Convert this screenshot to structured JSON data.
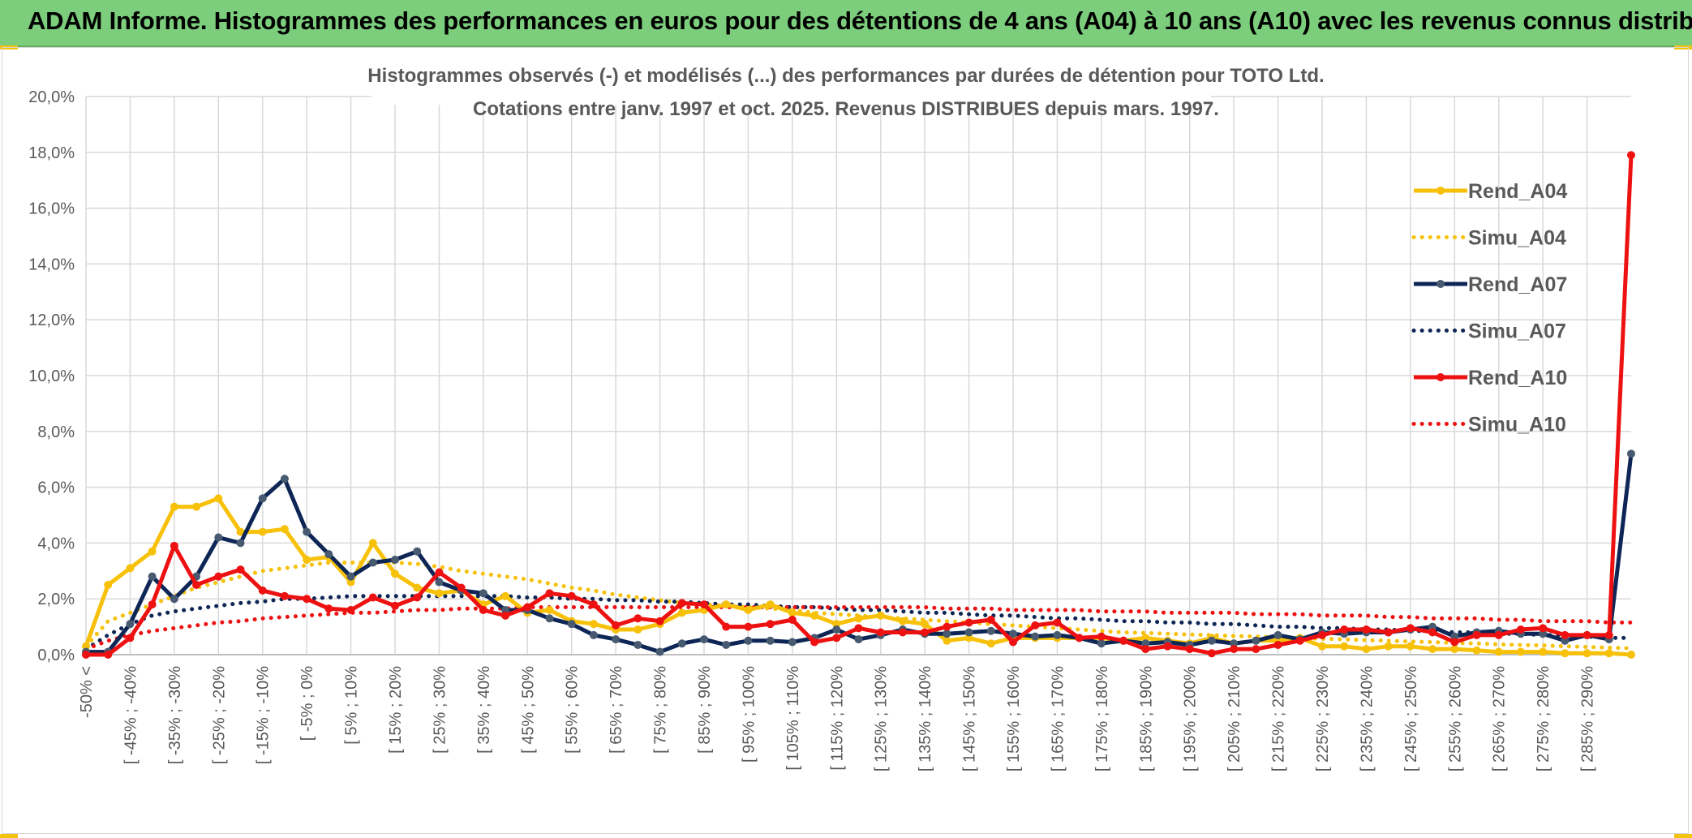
{
  "header": {
    "title": "ADAM Informe. Histogrammes des performances en euros pour des détentions de 4 ans (A04) à 10 ans (A10) avec les revenus connus distribués"
  },
  "colors": {
    "header_bg": "#7ccd7c",
    "A04": "#f7c10a",
    "A07": "#0d2656",
    "A10": "#ee1111",
    "grid": "#d9d9d9"
  },
  "chart_data": {
    "type": "line",
    "title_line1": "Histogrammes observés (-) et modélisés (...) des performances par durées de détention pour TOTO Ltd.",
    "title_line2": "Cotations entre janv. 1997 et oct. 2025. Revenus DISTRIBUES depuis mars. 1997.",
    "ylim": [
      0,
      20
    ],
    "yticks": [
      "0,0%",
      "2,0%",
      "4,0%",
      "6,0%",
      "8,0%",
      "10,0%",
      "12,0%",
      "14,0%",
      "16,0%",
      "18,0%",
      "20,0%"
    ],
    "categories_labeled": [
      "-50% <",
      "[ -45% ; -40%",
      "[ -35% ; -30%",
      "[ -25% ; -20%",
      "[ -15% ; -10%",
      "[ -5% ; 0%",
      "[ 5% ; 10%",
      "[ 15% ; 20%",
      "[ 25% ; 30%",
      "[ 35% ; 40%",
      "[ 45% ; 50%",
      "[ 55% ; 60%",
      "[ 65% ; 70%",
      "[ 75% ; 80%",
      "[ 85% ; 90%",
      "[ 95% ; 100%",
      "[ 105% ; 110%",
      "[ 115% ; 120%",
      "[ 125% ; 130%",
      "[ 135% ; 140%",
      "[ 145% ; 150%",
      "[ 155% ; 160%",
      "[ 165% ; 170%",
      "[ 175% ; 180%",
      "[ 185% ; 190%",
      "[ 195% ; 200%",
      "[ 205% ; 210%",
      "[ 215% ; 220%",
      "[ 225% ; 230%",
      "[ 235% ; 240%",
      "[ 245% ; 250%",
      "[ 255% ; 260%",
      "[ 265% ; 270%",
      "[ 275% ; 280%",
      "[ 285% ; 290%"
    ],
    "n_points": 71,
    "legend": [
      "Rend_A04",
      "Simu_A04",
      "Rend_A07",
      "Simu_A07",
      "Rend_A10",
      "Simu_A10"
    ],
    "series": [
      {
        "name": "Rend_A04",
        "key": "A04",
        "style": "solid",
        "values": [
          0.3,
          2.5,
          3.1,
          3.7,
          5.3,
          5.3,
          5.6,
          4.4,
          4.4,
          4.5,
          3.4,
          3.5,
          2.6,
          4.0,
          2.9,
          2.4,
          2.2,
          2.3,
          1.8,
          2.1,
          1.5,
          1.6,
          1.2,
          1.1,
          0.9,
          0.9,
          1.1,
          1.5,
          1.6,
          1.8,
          1.6,
          1.8,
          1.5,
          1.4,
          1.1,
          1.3,
          1.4,
          1.2,
          1.1,
          0.5,
          0.6,
          0.4,
          0.6,
          0.6,
          0.6,
          0.6,
          0.6,
          0.5,
          0.6,
          0.5,
          0.4,
          0.6,
          0.4,
          0.5,
          0.5,
          0.6,
          0.3,
          0.3,
          0.2,
          0.3,
          0.3,
          0.2,
          0.2,
          0.15,
          0.1,
          0.1,
          0.1,
          0.05,
          0.05,
          0.05,
          0.0
        ]
      },
      {
        "name": "Simu_A04",
        "key": "A04",
        "style": "dotted",
        "values": [
          0.3,
          1.2,
          1.5,
          1.8,
          2.1,
          2.4,
          2.6,
          2.8,
          3.0,
          3.1,
          3.2,
          3.3,
          3.3,
          3.3,
          3.3,
          3.25,
          3.15,
          3.0,
          2.9,
          2.8,
          2.7,
          2.55,
          2.4,
          2.3,
          2.15,
          2.05,
          1.95,
          1.85,
          1.8,
          1.75,
          1.7,
          1.65,
          1.6,
          1.5,
          1.45,
          1.4,
          1.35,
          1.3,
          1.25,
          1.2,
          1.15,
          1.1,
          1.05,
          1.0,
          0.95,
          0.9,
          0.85,
          0.8,
          0.78,
          0.75,
          0.72,
          0.7,
          0.67,
          0.65,
          0.62,
          0.6,
          0.57,
          0.55,
          0.52,
          0.5,
          0.47,
          0.45,
          0.42,
          0.4,
          0.37,
          0.35,
          0.33,
          0.3,
          0.28,
          0.25,
          0.23
        ]
      },
      {
        "name": "Rend_A07",
        "key": "A07",
        "style": "solid",
        "values": [
          0.1,
          0.1,
          1.1,
          2.8,
          2.0,
          2.8,
          4.2,
          4.0,
          5.6,
          6.3,
          4.4,
          3.6,
          2.8,
          3.3,
          3.4,
          3.7,
          2.6,
          2.3,
          2.2,
          1.6,
          1.6,
          1.3,
          1.1,
          0.7,
          0.55,
          0.35,
          0.1,
          0.4,
          0.55,
          0.35,
          0.5,
          0.5,
          0.45,
          0.6,
          0.9,
          0.55,
          0.7,
          0.9,
          0.75,
          0.75,
          0.8,
          0.85,
          0.75,
          0.65,
          0.7,
          0.6,
          0.4,
          0.5,
          0.4,
          0.45,
          0.35,
          0.5,
          0.4,
          0.5,
          0.7,
          0.55,
          0.8,
          0.75,
          0.8,
          0.8,
          0.9,
          1.0,
          0.65,
          0.8,
          0.85,
          0.75,
          0.75,
          0.5,
          0.7,
          0.55,
          7.2
        ]
      },
      {
        "name": "Simu_A07",
        "key": "A07",
        "style": "dotted",
        "values": [
          0.2,
          0.7,
          1.1,
          1.4,
          1.55,
          1.65,
          1.75,
          1.85,
          1.9,
          2.0,
          2.0,
          2.05,
          2.1,
          2.1,
          2.1,
          2.1,
          2.1,
          2.1,
          2.1,
          2.1,
          2.05,
          2.05,
          2.0,
          2.0,
          1.95,
          1.95,
          1.9,
          1.9,
          1.85,
          1.8,
          1.8,
          1.75,
          1.7,
          1.7,
          1.65,
          1.6,
          1.6,
          1.55,
          1.5,
          1.5,
          1.45,
          1.4,
          1.4,
          1.35,
          1.3,
          1.3,
          1.25,
          1.2,
          1.2,
          1.15,
          1.15,
          1.1,
          1.1,
          1.05,
          1.0,
          1.0,
          0.95,
          0.95,
          0.9,
          0.9,
          0.85,
          0.85,
          0.8,
          0.8,
          0.75,
          0.75,
          0.7,
          0.7,
          0.65,
          0.6,
          0.6
        ]
      },
      {
        "name": "Rend_A10",
        "key": "A10",
        "style": "solid",
        "values": [
          0.0,
          0.0,
          0.6,
          1.8,
          3.9,
          2.5,
          2.8,
          3.05,
          2.3,
          2.1,
          2.0,
          1.65,
          1.6,
          2.05,
          1.75,
          2.05,
          2.95,
          2.4,
          1.6,
          1.4,
          1.7,
          2.2,
          2.1,
          1.8,
          1.05,
          1.3,
          1.2,
          1.85,
          1.8,
          1.0,
          1.0,
          1.1,
          1.25,
          0.45,
          0.6,
          0.95,
          0.8,
          0.8,
          0.8,
          1.0,
          1.15,
          1.25,
          0.45,
          1.05,
          1.15,
          0.6,
          0.65,
          0.5,
          0.2,
          0.3,
          0.2,
          0.05,
          0.2,
          0.2,
          0.35,
          0.5,
          0.7,
          0.9,
          0.9,
          0.8,
          0.95,
          0.8,
          0.45,
          0.7,
          0.7,
          0.9,
          0.95,
          0.7,
          0.7,
          0.7,
          17.9
        ]
      },
      {
        "name": "Simu_A10",
        "key": "A10",
        "style": "dotted",
        "values": [
          0.2,
          0.5,
          0.7,
          0.85,
          0.95,
          1.05,
          1.15,
          1.2,
          1.3,
          1.35,
          1.4,
          1.45,
          1.5,
          1.5,
          1.55,
          1.6,
          1.6,
          1.65,
          1.65,
          1.65,
          1.7,
          1.7,
          1.7,
          1.7,
          1.7,
          1.7,
          1.7,
          1.7,
          1.7,
          1.7,
          1.7,
          1.7,
          1.7,
          1.7,
          1.7,
          1.7,
          1.7,
          1.7,
          1.7,
          1.65,
          1.65,
          1.65,
          1.6,
          1.6,
          1.6,
          1.6,
          1.55,
          1.55,
          1.55,
          1.5,
          1.5,
          1.5,
          1.5,
          1.45,
          1.45,
          1.45,
          1.4,
          1.4,
          1.4,
          1.35,
          1.35,
          1.3,
          1.3,
          1.3,
          1.25,
          1.25,
          1.2,
          1.2,
          1.2,
          1.15,
          1.15
        ]
      }
    ]
  }
}
